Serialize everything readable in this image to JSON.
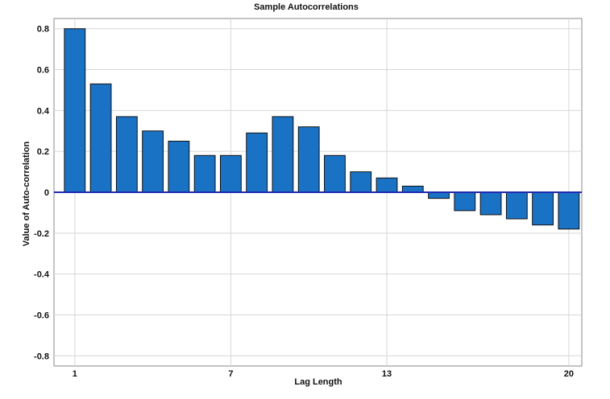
{
  "chart_data": {
    "type": "bar",
    "title": "Sample Autocorrelations",
    "xlabel": "Lag Length",
    "ylabel": "Value of Auto-correlation",
    "x": [
      1,
      2,
      3,
      4,
      5,
      6,
      7,
      8,
      9,
      10,
      11,
      12,
      13,
      14,
      15,
      16,
      17,
      18,
      19,
      20
    ],
    "values": [
      0.8,
      0.53,
      0.37,
      0.3,
      0.25,
      0.18,
      0.18,
      0.29,
      0.37,
      0.32,
      0.18,
      0.1,
      0.07,
      0.03,
      -0.03,
      -0.09,
      -0.11,
      -0.13,
      -0.16,
      -0.18
    ],
    "ylim": [
      -0.85,
      0.85
    ],
    "yticks": [
      0.8,
      0.6,
      0.4,
      0.2,
      0,
      -0.2,
      -0.4,
      -0.6,
      -0.8
    ],
    "ytick_labels": [
      "0.8",
      "0.6",
      "0.4",
      "0.2",
      "0",
      "-0.2",
      "-0.4",
      "-0.6",
      "-0.8"
    ],
    "xticks": [
      1,
      7,
      13,
      20
    ],
    "xtick_labels": [
      "1",
      "7",
      "13",
      "20"
    ],
    "xlim": [
      0.2,
      20.5
    ],
    "grid": true,
    "zero_line": true,
    "colors": {
      "bar_fill": "#1a72c4",
      "bar_stroke": "#111111",
      "zero_line": "#1f2ab0",
      "grid": "#d7d7d7",
      "frame": "#888888"
    }
  }
}
